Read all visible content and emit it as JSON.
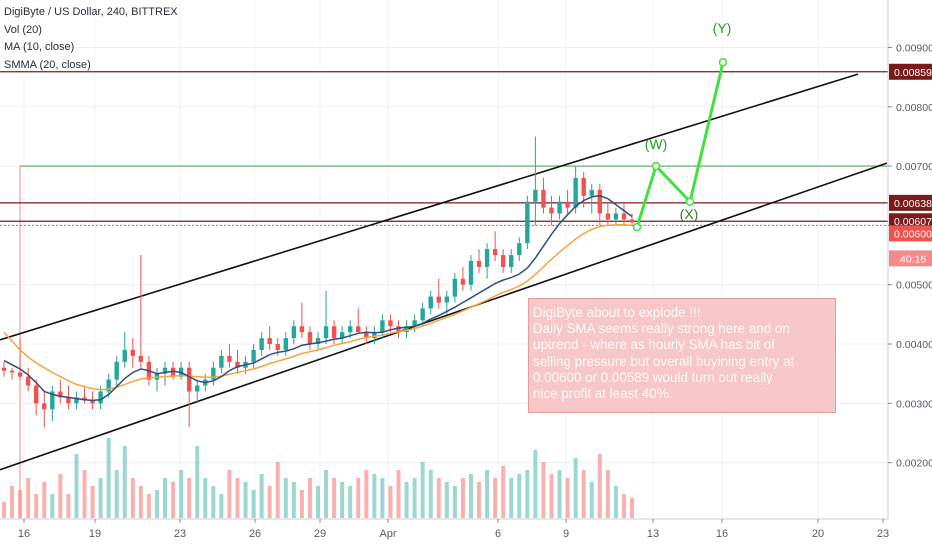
{
  "legend": {
    "symbol": "DigiByte / US Dollar, 240, BITTREX",
    "volume": "Vol (20)",
    "ma": "MA (10, close)",
    "smma": "SMMA (20, close)"
  },
  "annotation": {
    "lines": [
      "DigiByte about to explode !!!",
      "Daily SMA seems really strong here and on",
      "uptrend - where as hourly SMA has bit of",
      "selling pressure but overall buyining entry at",
      "0.00600 or 0.00589 would turn out really",
      "nice profit at least 40%."
    ]
  },
  "colors": {
    "up": "#26a69a",
    "down": "#ef5350",
    "ma": "#2f4f7f",
    "smma": "#f7a440",
    "support": "#7b1a1a",
    "target_green": "#4caf50",
    "wave": "#3ee23e",
    "channel": "#111111",
    "price_tag_red": "#ef5350",
    "timer_bg": "#f48a8a"
  },
  "chart_data": {
    "type": "line",
    "x_axis_ticks": [
      "16",
      "19",
      "23",
      "26",
      "29",
      "Apr",
      "6",
      "9",
      "13",
      "16",
      "20",
      "23"
    ],
    "y_axis_ticks": [
      0.002,
      0.003,
      0.004,
      0.005,
      0.006,
      0.007,
      0.008,
      0.009
    ],
    "y_tick_labels": [
      "0.00200",
      "0.00300",
      "0.00400",
      "0.00500",
      "0.00600",
      "0.00700",
      "0.00800",
      "0.00900"
    ],
    "ylim": [
      0.00105,
      0.0098
    ],
    "price_tags": [
      {
        "label": "0.00859",
        "value": 0.00859
      },
      {
        "label": "0.00638",
        "value": 0.00638
      },
      {
        "label": "0.00607",
        "value": 0.00607
      },
      {
        "label": "0.00600",
        "value": 0.006
      }
    ],
    "countdown": "40:16",
    "horizontal_levels": [
      {
        "value": 0.00859,
        "role": "target"
      },
      {
        "value": 0.007,
        "role": "level"
      },
      {
        "value": 0.00638,
        "role": "resistance"
      },
      {
        "value": 0.00607,
        "role": "support"
      },
      {
        "value": 0.006,
        "role": "support"
      }
    ],
    "channel_upper": [
      [
        0.00407,
        0
      ],
      [
        0.00855,
        858
      ]
    ],
    "channel_lower": [
      [
        0.00188,
        0
      ],
      [
        0.00705,
        887
      ]
    ],
    "wave_labels": [
      "(W)",
      "(X)",
      "(Y)"
    ],
    "wave_path": [
      [
        0.00597,
        637
      ],
      [
        0.007,
        656
      ],
      [
        0.0064,
        690
      ],
      [
        0.00875,
        723
      ]
    ],
    "candles": [
      {
        "o": 0.0036,
        "h": 0.0037,
        "l": 0.00345,
        "c": 0.00355
      },
      {
        "o": 0.00355,
        "h": 0.0036,
        "l": 0.0034,
        "c": 0.00352
      },
      {
        "o": 0.00352,
        "h": 0.0041,
        "l": 0.0034,
        "c": 0.00345
      },
      {
        "o": 0.00345,
        "h": 0.0036,
        "l": 0.0032,
        "c": 0.0033
      },
      {
        "o": 0.0033,
        "h": 0.0034,
        "l": 0.0028,
        "c": 0.003
      },
      {
        "o": 0.003,
        "h": 0.0032,
        "l": 0.0026,
        "c": 0.0029
      },
      {
        "o": 0.0029,
        "h": 0.0033,
        "l": 0.0027,
        "c": 0.0032
      },
      {
        "o": 0.0032,
        "h": 0.0034,
        "l": 0.003,
        "c": 0.0031
      },
      {
        "o": 0.0031,
        "h": 0.0033,
        "l": 0.0029,
        "c": 0.003
      },
      {
        "o": 0.003,
        "h": 0.0032,
        "l": 0.0029,
        "c": 0.0031
      },
      {
        "o": 0.0031,
        "h": 0.0033,
        "l": 0.003,
        "c": 0.00305
      },
      {
        "o": 0.00305,
        "h": 0.0032,
        "l": 0.0029,
        "c": 0.003
      },
      {
        "o": 0.003,
        "h": 0.0033,
        "l": 0.0029,
        "c": 0.0032
      },
      {
        "o": 0.0032,
        "h": 0.0035,
        "l": 0.0031,
        "c": 0.0034
      },
      {
        "o": 0.0034,
        "h": 0.0038,
        "l": 0.0033,
        "c": 0.0037
      },
      {
        "o": 0.0037,
        "h": 0.0042,
        "l": 0.0036,
        "c": 0.0039
      },
      {
        "o": 0.0039,
        "h": 0.0041,
        "l": 0.0036,
        "c": 0.0038
      },
      {
        "o": 0.0038,
        "h": 0.0055,
        "l": 0.0036,
        "c": 0.0037
      },
      {
        "o": 0.0037,
        "h": 0.0038,
        "l": 0.0033,
        "c": 0.0034
      },
      {
        "o": 0.0034,
        "h": 0.0036,
        "l": 0.0032,
        "c": 0.0035
      },
      {
        "o": 0.0035,
        "h": 0.0037,
        "l": 0.0033,
        "c": 0.0036
      },
      {
        "o": 0.0036,
        "h": 0.0037,
        "l": 0.0034,
        "c": 0.00345
      },
      {
        "o": 0.00345,
        "h": 0.0037,
        "l": 0.0034,
        "c": 0.0036
      },
      {
        "o": 0.0036,
        "h": 0.0037,
        "l": 0.0026,
        "c": 0.0032
      },
      {
        "o": 0.0032,
        "h": 0.0034,
        "l": 0.003,
        "c": 0.0033
      },
      {
        "o": 0.0033,
        "h": 0.0035,
        "l": 0.0032,
        "c": 0.0034
      },
      {
        "o": 0.0034,
        "h": 0.0037,
        "l": 0.0033,
        "c": 0.0036
      },
      {
        "o": 0.0036,
        "h": 0.0039,
        "l": 0.0035,
        "c": 0.0038
      },
      {
        "o": 0.0038,
        "h": 0.004,
        "l": 0.0036,
        "c": 0.0037
      },
      {
        "o": 0.0037,
        "h": 0.0039,
        "l": 0.0035,
        "c": 0.0036
      },
      {
        "o": 0.0036,
        "h": 0.0038,
        "l": 0.0035,
        "c": 0.0037
      },
      {
        "o": 0.0037,
        "h": 0.004,
        "l": 0.0036,
        "c": 0.0039
      },
      {
        "o": 0.0039,
        "h": 0.0042,
        "l": 0.0038,
        "c": 0.0041
      },
      {
        "o": 0.0041,
        "h": 0.0043,
        "l": 0.0039,
        "c": 0.004
      },
      {
        "o": 0.004,
        "h": 0.0041,
        "l": 0.0038,
        "c": 0.0039
      },
      {
        "o": 0.0039,
        "h": 0.0042,
        "l": 0.0038,
        "c": 0.0041
      },
      {
        "o": 0.0041,
        "h": 0.0044,
        "l": 0.004,
        "c": 0.0043
      },
      {
        "o": 0.0043,
        "h": 0.0047,
        "l": 0.0041,
        "c": 0.0042
      },
      {
        "o": 0.0042,
        "h": 0.0043,
        "l": 0.0039,
        "c": 0.004
      },
      {
        "o": 0.004,
        "h": 0.0042,
        "l": 0.0039,
        "c": 0.0041
      },
      {
        "o": 0.0041,
        "h": 0.0049,
        "l": 0.004,
        "c": 0.0043
      },
      {
        "o": 0.0043,
        "h": 0.0044,
        "l": 0.004,
        "c": 0.0041
      },
      {
        "o": 0.0041,
        "h": 0.0043,
        "l": 0.004,
        "c": 0.0042
      },
      {
        "o": 0.0042,
        "h": 0.0044,
        "l": 0.0041,
        "c": 0.0043
      },
      {
        "o": 0.0043,
        "h": 0.0046,
        "l": 0.0042,
        "c": 0.0042
      },
      {
        "o": 0.0042,
        "h": 0.0043,
        "l": 0.004,
        "c": 0.0041
      },
      {
        "o": 0.0041,
        "h": 0.0043,
        "l": 0.004,
        "c": 0.0042
      },
      {
        "o": 0.0042,
        "h": 0.0045,
        "l": 0.0041,
        "c": 0.0044
      },
      {
        "o": 0.0044,
        "h": 0.0045,
        "l": 0.0042,
        "c": 0.0043
      },
      {
        "o": 0.0043,
        "h": 0.0044,
        "l": 0.0041,
        "c": 0.0042
      },
      {
        "o": 0.0042,
        "h": 0.0044,
        "l": 0.0041,
        "c": 0.0043
      },
      {
        "o": 0.0043,
        "h": 0.0045,
        "l": 0.0042,
        "c": 0.0044
      },
      {
        "o": 0.0044,
        "h": 0.0047,
        "l": 0.0043,
        "c": 0.0046
      },
      {
        "o": 0.0046,
        "h": 0.0049,
        "l": 0.0045,
        "c": 0.0048
      },
      {
        "o": 0.0048,
        "h": 0.0051,
        "l": 0.0046,
        "c": 0.0047
      },
      {
        "o": 0.0047,
        "h": 0.0049,
        "l": 0.0045,
        "c": 0.0048
      },
      {
        "o": 0.0048,
        "h": 0.0052,
        "l": 0.0047,
        "c": 0.0051
      },
      {
        "o": 0.0051,
        "h": 0.0053,
        "l": 0.0049,
        "c": 0.005
      },
      {
        "o": 0.005,
        "h": 0.0055,
        "l": 0.0049,
        "c": 0.0054
      },
      {
        "o": 0.0054,
        "h": 0.0056,
        "l": 0.0052,
        "c": 0.0053
      },
      {
        "o": 0.0053,
        "h": 0.0057,
        "l": 0.0051,
        "c": 0.0056
      },
      {
        "o": 0.0056,
        "h": 0.0059,
        "l": 0.0054,
        "c": 0.0055
      },
      {
        "o": 0.0055,
        "h": 0.0056,
        "l": 0.0052,
        "c": 0.0053
      },
      {
        "o": 0.0053,
        "h": 0.0056,
        "l": 0.0052,
        "c": 0.0055
      },
      {
        "o": 0.0055,
        "h": 0.0058,
        "l": 0.0054,
        "c": 0.0057
      },
      {
        "o": 0.0057,
        "h": 0.0065,
        "l": 0.0056,
        "c": 0.0064
      },
      {
        "o": 0.0064,
        "h": 0.0075,
        "l": 0.006,
        "c": 0.0066
      },
      {
        "o": 0.0066,
        "h": 0.0068,
        "l": 0.0062,
        "c": 0.0063
      },
      {
        "o": 0.0063,
        "h": 0.0065,
        "l": 0.006,
        "c": 0.0062
      },
      {
        "o": 0.0062,
        "h": 0.0065,
        "l": 0.0061,
        "c": 0.0064
      },
      {
        "o": 0.0064,
        "h": 0.0066,
        "l": 0.0062,
        "c": 0.0063
      },
      {
        "o": 0.0063,
        "h": 0.007,
        "l": 0.0062,
        "c": 0.0068
      },
      {
        "o": 0.0068,
        "h": 0.0069,
        "l": 0.0063,
        "c": 0.0065
      },
      {
        "o": 0.0065,
        "h": 0.0067,
        "l": 0.0062,
        "c": 0.0066
      },
      {
        "o": 0.0066,
        "h": 0.0067,
        "l": 0.006,
        "c": 0.0062
      },
      {
        "o": 0.0062,
        "h": 0.0064,
        "l": 0.006,
        "c": 0.0061
      },
      {
        "o": 0.0061,
        "h": 0.0063,
        "l": 0.006,
        "c": 0.0062
      },
      {
        "o": 0.0062,
        "h": 0.0064,
        "l": 0.006,
        "c": 0.0061
      },
      {
        "o": 0.0061,
        "h": 0.0062,
        "l": 0.006,
        "c": 0.00605
      }
    ],
    "volume": [
      0.2,
      0.4,
      0.35,
      0.5,
      0.3,
      0.45,
      0.3,
      0.55,
      0.3,
      0.8,
      0.6,
      0.4,
      0.5,
      1,
      0.6,
      0.9,
      0.5,
      0.4,
      0.3,
      0.35,
      0.5,
      0.45,
      0.6,
      0.5,
      0.9,
      0.5,
      0.4,
      0.3,
      0.6,
      0.5,
      0.45,
      0.35,
      0.55,
      0.4,
      0.7,
      0.5,
      0.45,
      0.35,
      0.5,
      0.4,
      0.6,
      0.5,
      0.45,
      0.4,
      0.5,
      0.6,
      0.55,
      0.5,
      0.4,
      0.6,
      0.45,
      0.5,
      0.7,
      0.6,
      0.5,
      0.45,
      0.4,
      0.5,
      0.55,
      0.45,
      0.6,
      0.5,
      0.65,
      0.5,
      0.55,
      0.6,
      0.85,
      0.7,
      0.55,
      0.6,
      0.5,
      0.75,
      0.6,
      0.45,
      0.8,
      0.6,
      0.4,
      0.3,
      0.25
    ],
    "ma_10": [
      0.00372,
      0.00365,
      0.00358,
      0.00348,
      0.00335,
      0.0032,
      0.00315,
      0.00312,
      0.0031,
      0.00308,
      0.00306,
      0.00305,
      0.00306,
      0.00315,
      0.00328,
      0.00342,
      0.00352,
      0.00358,
      0.00355,
      0.0035,
      0.00352,
      0.00354,
      0.00352,
      0.00345,
      0.00338,
      0.00335,
      0.00338,
      0.00345,
      0.00355,
      0.00362,
      0.00365,
      0.00368,
      0.00375,
      0.00382,
      0.00386,
      0.00388,
      0.00392,
      0.00398,
      0.004,
      0.00402,
      0.00405,
      0.00408,
      0.0041,
      0.00414,
      0.00418,
      0.0042,
      0.00419,
      0.0042,
      0.00424,
      0.00427,
      0.00428,
      0.0043,
      0.00435,
      0.00442,
      0.00448,
      0.00455,
      0.00462,
      0.0047,
      0.00478,
      0.00486,
      0.00494,
      0.00502,
      0.00508,
      0.00512,
      0.00518,
      0.00528,
      0.00545,
      0.00565,
      0.00585,
      0.00603,
      0.00618,
      0.00632,
      0.00642,
      0.00648,
      0.0065,
      0.00645,
      0.00635,
      0.00625,
      0.00615
    ],
    "smma_20": [
      0.0042,
      0.00405,
      0.0039,
      0.00378,
      0.00368,
      0.0036,
      0.00352,
      0.00345,
      0.00338,
      0.00332,
      0.00328,
      0.00325,
      0.00323,
      0.00324,
      0.00327,
      0.00332,
      0.00337,
      0.00341,
      0.00343,
      0.00344,
      0.00345,
      0.00346,
      0.00347,
      0.00346,
      0.00345,
      0.00344,
      0.00344,
      0.00346,
      0.00349,
      0.00352,
      0.00355,
      0.00358,
      0.00362,
      0.00367,
      0.00371,
      0.00375,
      0.00379,
      0.00384,
      0.00387,
      0.0039,
      0.00394,
      0.00398,
      0.00401,
      0.00404,
      0.00408,
      0.00411,
      0.00413,
      0.00415,
      0.00418,
      0.00421,
      0.00423,
      0.00426,
      0.0043,
      0.00435,
      0.0044,
      0.00445,
      0.0045,
      0.00456,
      0.00462,
      0.00468,
      0.00474,
      0.00481,
      0.00487,
      0.00492,
      0.00498,
      0.00506,
      0.00517,
      0.0053,
      0.00543,
      0.00555,
      0.00566,
      0.00577,
      0.00586,
      0.00593,
      0.00598,
      0.006,
      0.00601,
      0.00601,
      0.006
    ]
  }
}
